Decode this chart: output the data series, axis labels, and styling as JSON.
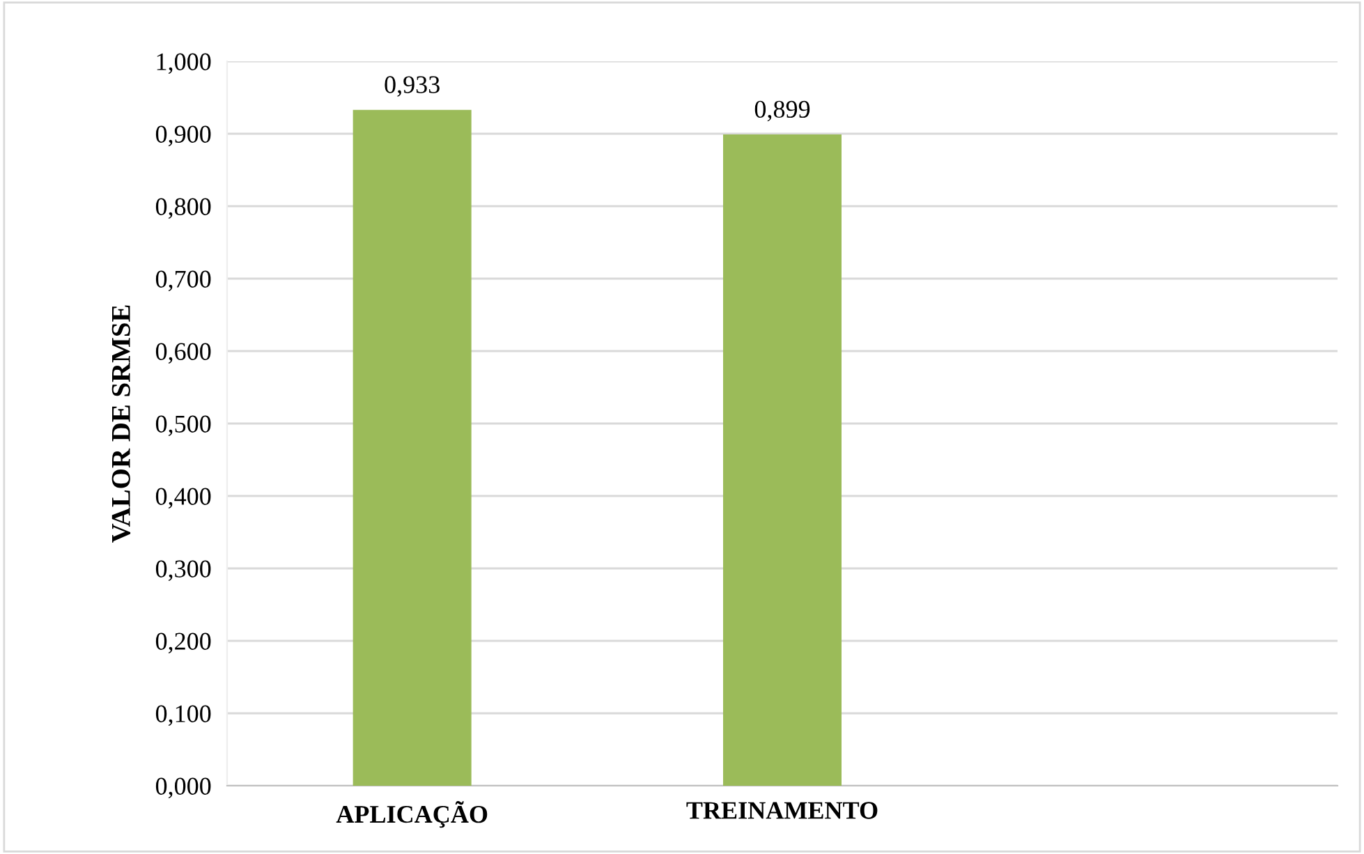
{
  "chart_data": {
    "type": "bar",
    "ylabel": "VALOR DE SRMSE",
    "categories": [
      "APLICAÇÃO",
      "TREINAMENTO",
      null
    ],
    "series": [
      {
        "color": "#9bbb59",
        "values": [
          0.933,
          0.899,
          null
        ]
      }
    ],
    "value_labels": [
      "0,933",
      "0,899",
      null
    ],
    "ylim": [
      0,
      1
    ],
    "yticks": [
      {
        "value": 0,
        "label": "0,000"
      },
      {
        "value": 0.1,
        "label": "0,100"
      },
      {
        "value": 0.2,
        "label": "0,200"
      },
      {
        "value": 0.3,
        "label": "0,300"
      },
      {
        "value": 0.4,
        "label": "0,400"
      },
      {
        "value": 0.5,
        "label": "0,500"
      },
      {
        "value": 0.6,
        "label": "0,600"
      },
      {
        "value": 0.7,
        "label": "0,700"
      },
      {
        "value": 0.8,
        "label": "0,800"
      },
      {
        "value": 0.9,
        "label": "0,900"
      },
      {
        "value": 1,
        "label": "1,000"
      }
    ],
    "grid": "y",
    "legend": false
  }
}
